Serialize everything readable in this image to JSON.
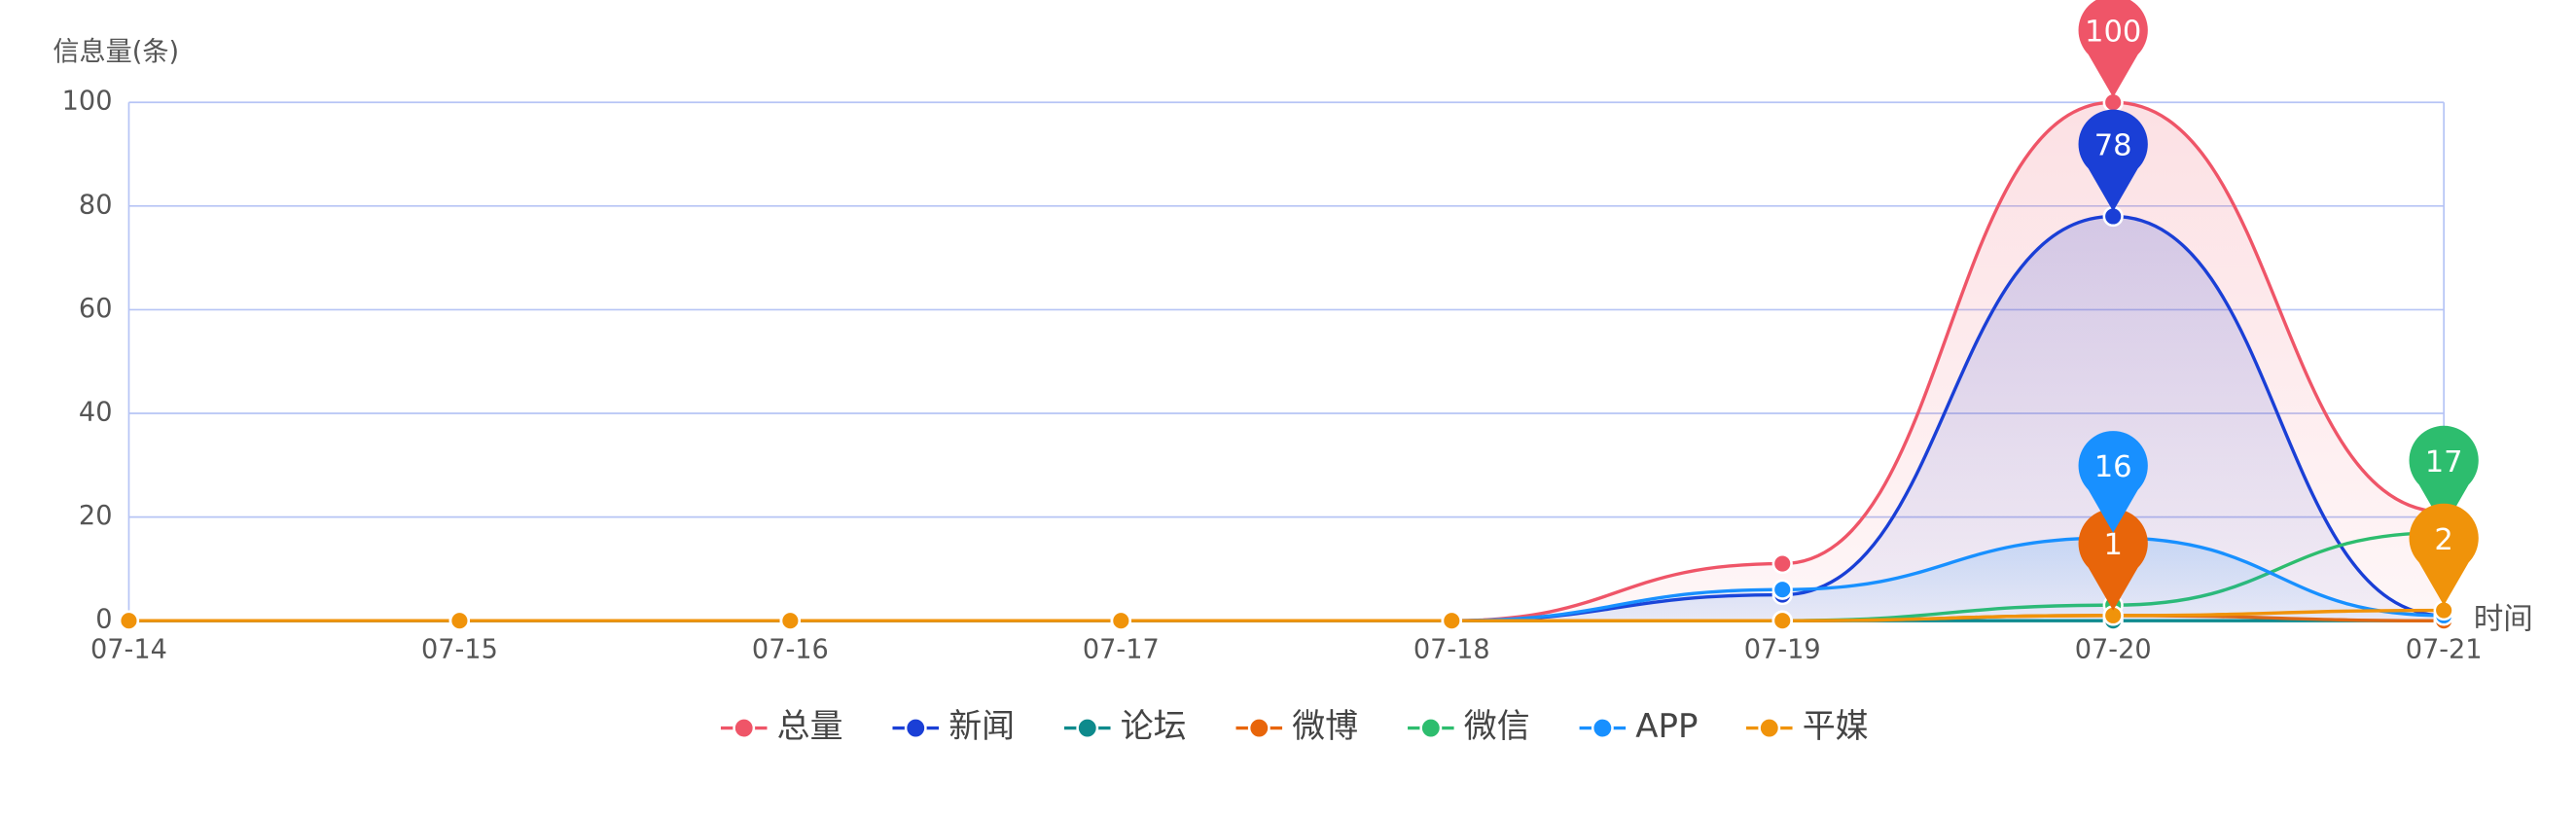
{
  "chart_data": {
    "type": "line",
    "smooth": true,
    "y_label": "信息量(条)",
    "x_label": "时间",
    "categories": [
      "07-14",
      "07-15",
      "07-16",
      "07-17",
      "07-18",
      "07-19",
      "07-20",
      "07-21"
    ],
    "ylim": [
      0,
      100
    ],
    "yticks": [
      0,
      20,
      40,
      60,
      80,
      100
    ],
    "grid": true,
    "legend": "bottom",
    "series": [
      {
        "name": "总量",
        "color": "#ef5568",
        "area": true,
        "values": [
          0,
          0,
          0,
          0,
          0,
          11,
          100,
          21
        ]
      },
      {
        "name": "新闻",
        "color": "#1a3fd6",
        "area": true,
        "values": [
          0,
          0,
          0,
          0,
          0,
          5,
          78,
          1
        ]
      },
      {
        "name": "论坛",
        "color": "#0e8a8c",
        "values": [
          0,
          0,
          0,
          0,
          0,
          0,
          0,
          0
        ]
      },
      {
        "name": "微博",
        "color": "#e8650a",
        "values": [
          0,
          0,
          0,
          0,
          0,
          0,
          1,
          0
        ]
      },
      {
        "name": "微信",
        "color": "#2dbd6e",
        "values": [
          0,
          0,
          0,
          0,
          0,
          0,
          3,
          17
        ]
      },
      {
        "name": "APP",
        "color": "#1890ff",
        "area": true,
        "values": [
          0,
          0,
          0,
          0,
          0,
          6,
          16,
          1
        ]
      },
      {
        "name": "平媒",
        "color": "#f0930a",
        "values": [
          0,
          0,
          0,
          0,
          0,
          0,
          1,
          2
        ]
      }
    ]
  }
}
